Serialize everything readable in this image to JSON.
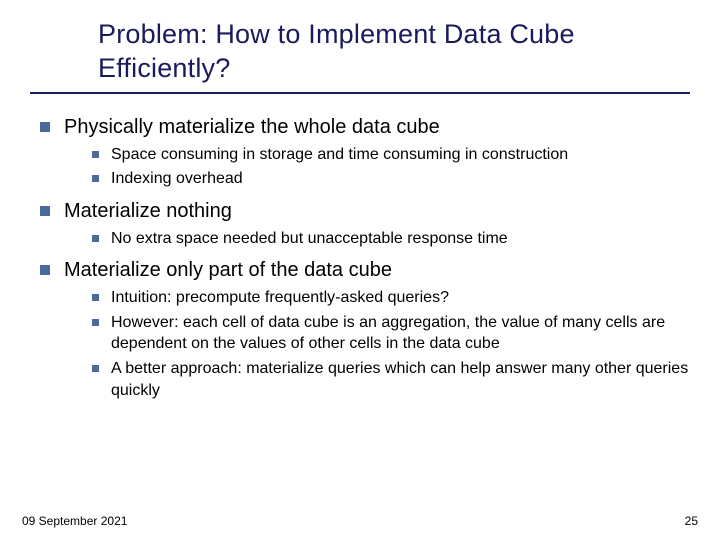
{
  "slide": {
    "title": "Problem: How to Implement Data Cube Efficiently?",
    "title_color": "#1a1a5c",
    "title_fontsize": 27,
    "underline_color": "#1a1a5c",
    "bullet_color": "#4a6a9a",
    "l1_fontsize": 20,
    "l2_fontsize": 16,
    "sections": [
      {
        "heading": "Physically materialize the whole data cube",
        "items": [
          "Space consuming in storage and time consuming in construction",
          "Indexing overhead"
        ]
      },
      {
        "heading": "Materialize nothing",
        "items": [
          "No extra space needed but unacceptable response time"
        ]
      },
      {
        "heading": "Materialize only part of the data cube",
        "items": [
          "Intuition: precompute frequently-asked queries?",
          "However: each cell of data cube is an aggregation, the value of many cells are dependent on the values of other cells in the data cube",
          "A better approach: materialize queries which can help answer many other queries quickly"
        ]
      }
    ],
    "footer": {
      "date": "09 September 2021",
      "page": "25"
    }
  }
}
